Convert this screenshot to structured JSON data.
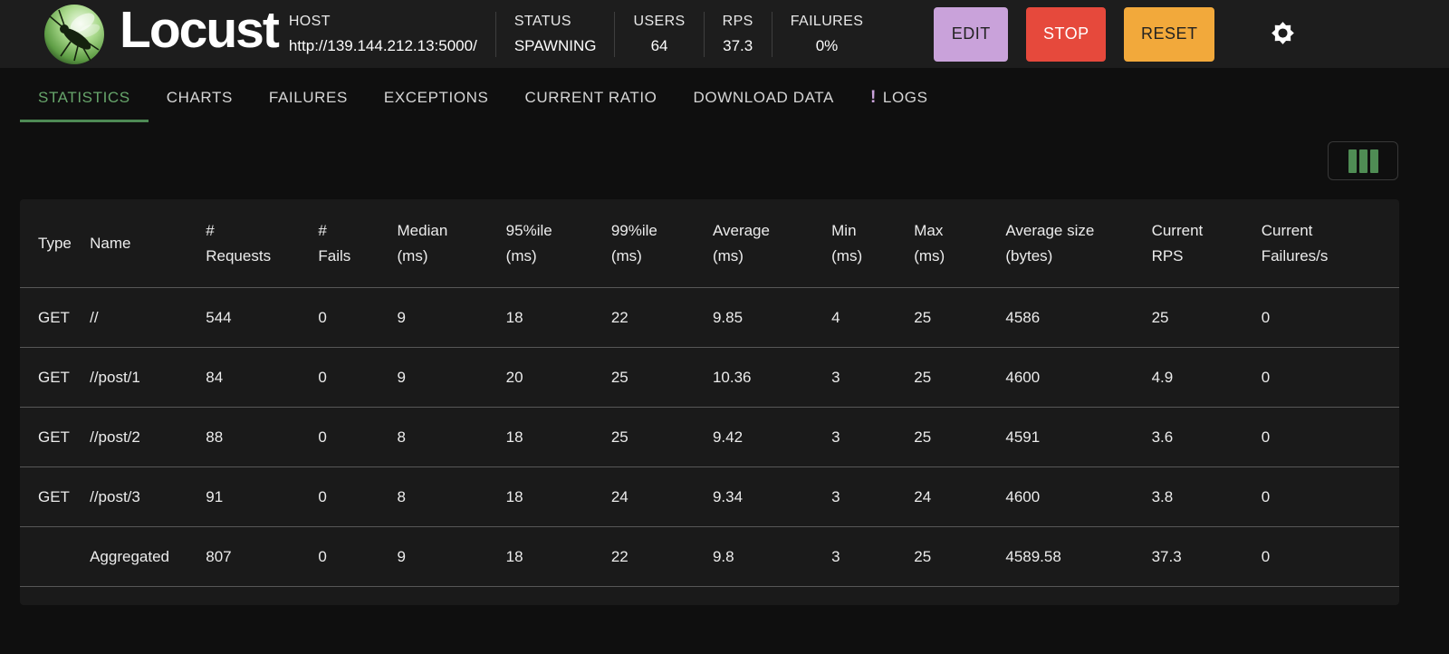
{
  "header": {
    "app_title": "Locust",
    "host_label": "HOST",
    "host_url": "http://139.144.212.13:5000/",
    "status_label": "STATUS",
    "status_value": "SPAWNING",
    "users_label": "USERS",
    "users_value": "64",
    "rps_label": "RPS",
    "rps_value": "37.3",
    "failures_label": "FAILURES",
    "failures_value": "0%",
    "buttons": {
      "edit": "EDIT",
      "stop": "STOP",
      "reset": "RESET"
    }
  },
  "icons": {
    "settings": "gear-icon",
    "columns": "column-view-icon",
    "logo": "locust-logo"
  },
  "colors": {
    "edit_button_bg": "#c9a2da",
    "stop_button_bg": "#e6493c",
    "reset_button_bg": "#f2a93b",
    "active_tab_green": "#67a56b",
    "tab_underline_green": "#4e8a55",
    "column_icon_green": "#4f8c54",
    "logs_badge_purple": "#c9a2da",
    "topbar_bg": "#1d1d1d",
    "page_bg": "#0f0f0f",
    "table_bg": "#1a1a1a"
  },
  "tabs": [
    {
      "label": "STATISTICS",
      "active": true
    },
    {
      "label": "CHARTS",
      "active": false
    },
    {
      "label": "FAILURES",
      "active": false
    },
    {
      "label": "EXCEPTIONS",
      "active": false
    },
    {
      "label": "CURRENT RATIO",
      "active": false
    },
    {
      "label": "DOWNLOAD DATA",
      "active": false
    },
    {
      "label": "LOGS",
      "active": false,
      "badge": "!"
    }
  ],
  "table": {
    "columns": [
      {
        "line1": "Type",
        "line2": ""
      },
      {
        "line1": "Name",
        "line2": ""
      },
      {
        "line1": "#",
        "line2": "Requests"
      },
      {
        "line1": "#",
        "line2": "Fails"
      },
      {
        "line1": "Median",
        "line2": "(ms)"
      },
      {
        "line1": "95%ile",
        "line2": "(ms)"
      },
      {
        "line1": "99%ile",
        "line2": "(ms)"
      },
      {
        "line1": "Average",
        "line2": "(ms)"
      },
      {
        "line1": "Min",
        "line2": "(ms)"
      },
      {
        "line1": "Max",
        "line2": "(ms)"
      },
      {
        "line1": "Average size",
        "line2": "(bytes)"
      },
      {
        "line1": "Current",
        "line2": "RPS"
      },
      {
        "line1": "Current",
        "line2": "Failures/s"
      }
    ],
    "rows": [
      [
        "GET",
        "//",
        "544",
        "0",
        "9",
        "18",
        "22",
        "9.85",
        "4",
        "25",
        "4586",
        "25",
        "0"
      ],
      [
        "GET",
        "//post/1",
        "84",
        "0",
        "9",
        "20",
        "25",
        "10.36",
        "3",
        "25",
        "4600",
        "4.9",
        "0"
      ],
      [
        "GET",
        "//post/2",
        "88",
        "0",
        "8",
        "18",
        "25",
        "9.42",
        "3",
        "25",
        "4591",
        "3.6",
        "0"
      ],
      [
        "GET",
        "//post/3",
        "91",
        "0",
        "8",
        "18",
        "24",
        "9.34",
        "3",
        "24",
        "4600",
        "3.8",
        "0"
      ]
    ],
    "footer": [
      "",
      "Aggregated",
      "807",
      "0",
      "9",
      "18",
      "22",
      "9.8",
      "3",
      "25",
      "4589.58",
      "37.3",
      "0"
    ]
  }
}
